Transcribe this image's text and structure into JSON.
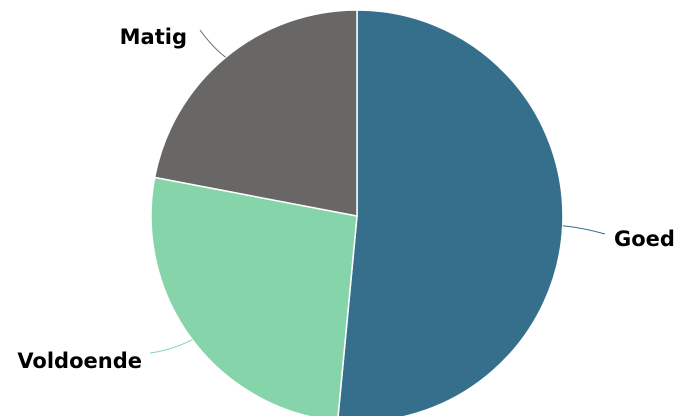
{
  "chart_data": {
    "type": "pie",
    "title": "",
    "slices": [
      {
        "label": "Goed",
        "value": 51.5,
        "color": "#356f8c"
      },
      {
        "label": "Voldoende",
        "value": 26.5,
        "color": "#86d4aa"
      },
      {
        "label": "Matig",
        "value": 22.0,
        "color": "#686765"
      }
    ],
    "start_angle_deg": 0,
    "direction": "clockwise",
    "legend": "none",
    "labels": "outside-with-leader-lines"
  }
}
